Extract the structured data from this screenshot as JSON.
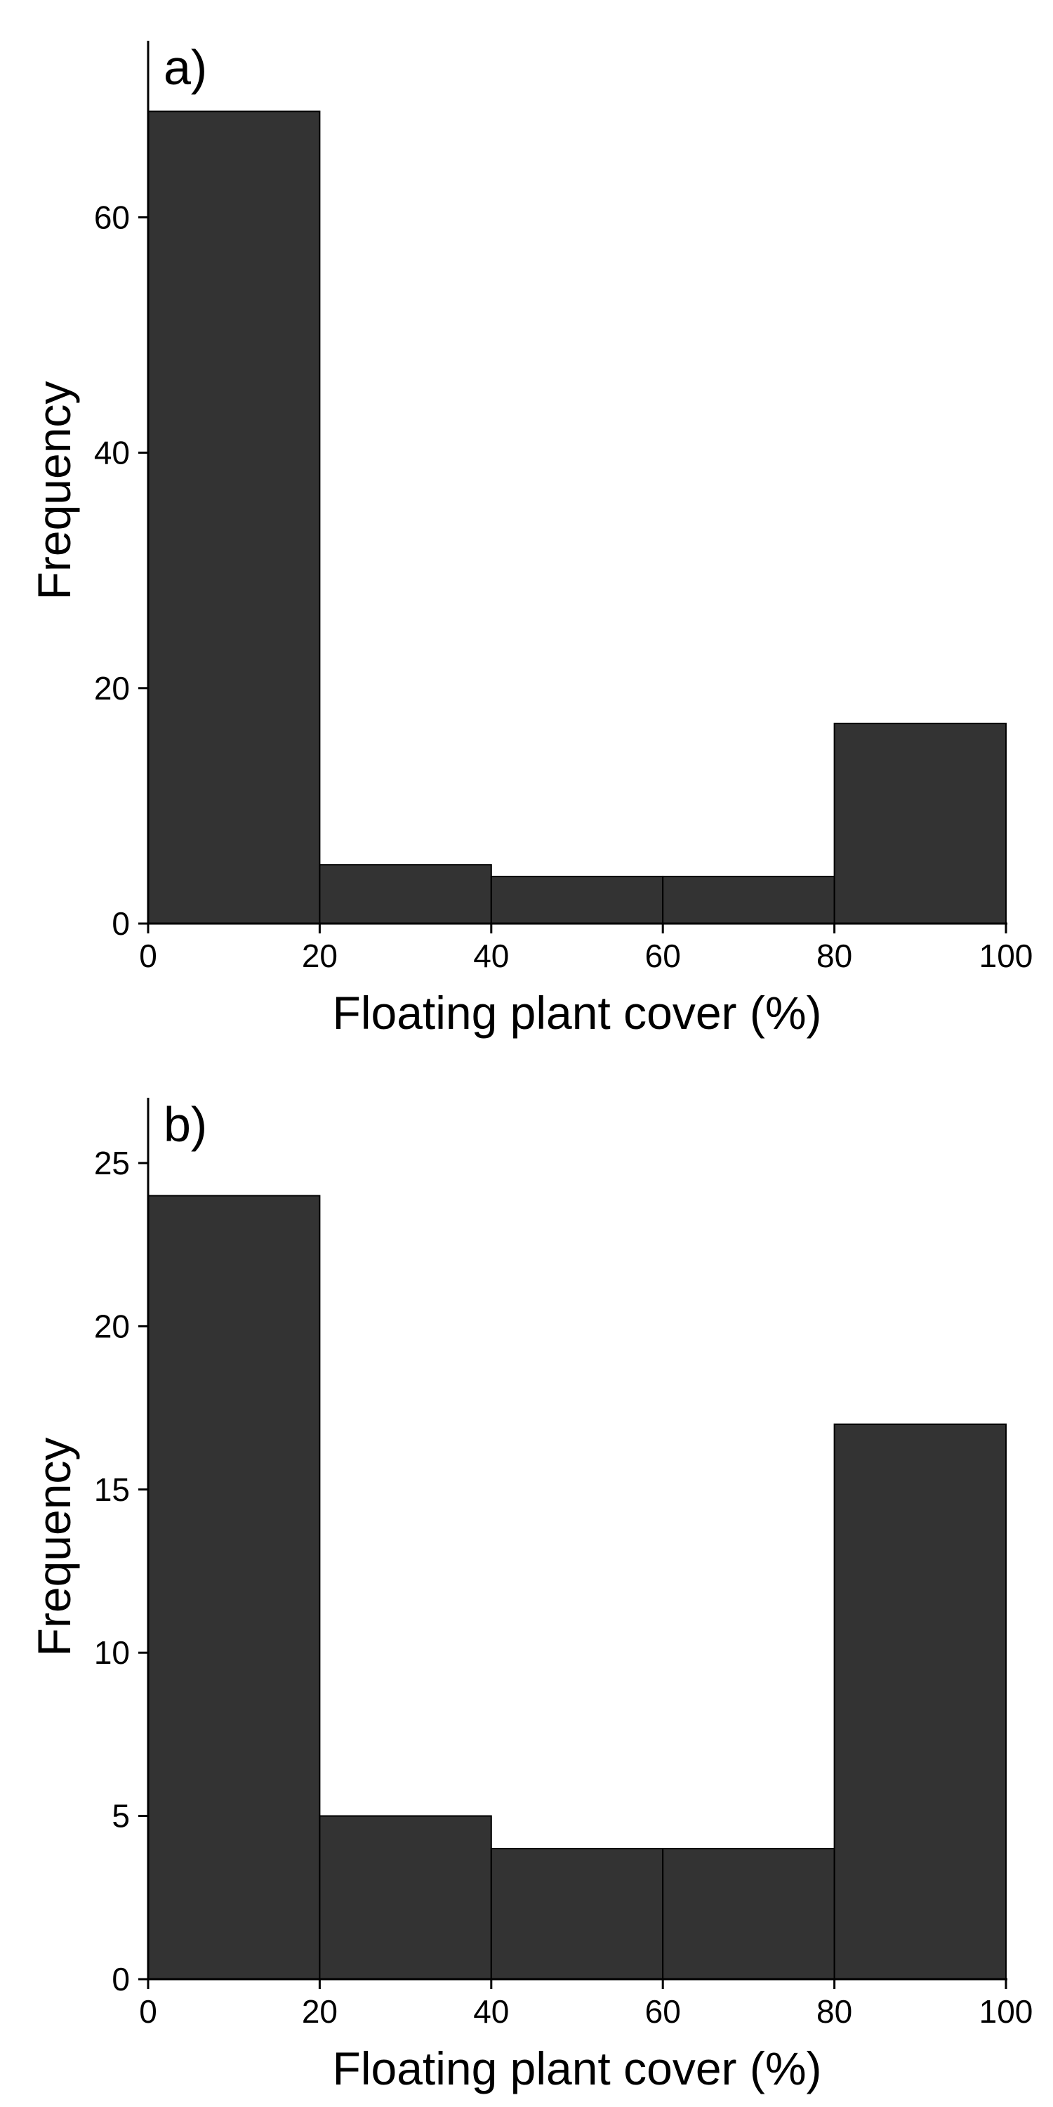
{
  "colors": {
    "bar_fill": "#333333",
    "bar_stroke": "#000000",
    "axis": "#000000"
  },
  "chart_data": [
    {
      "type": "bar",
      "panel_label": "a)",
      "xlabel": "Floating plant cover (%)",
      "ylabel": "Frequency",
      "bins": [
        [
          0,
          20
        ],
        [
          20,
          40
        ],
        [
          40,
          60
        ],
        [
          60,
          80
        ],
        [
          80,
          100
        ]
      ],
      "values": [
        69,
        5,
        4,
        4,
        17
      ],
      "xlim": [
        0,
        100
      ],
      "ylim": [
        0,
        75
      ],
      "xticks": [
        0,
        20,
        40,
        60,
        80,
        100
      ],
      "yticks": [
        0,
        20,
        40,
        60
      ],
      "grid": false
    },
    {
      "type": "bar",
      "panel_label": "b)",
      "xlabel": "Floating plant cover (%)",
      "ylabel": "Frequency",
      "bins": [
        [
          0,
          20
        ],
        [
          20,
          40
        ],
        [
          40,
          60
        ],
        [
          60,
          80
        ],
        [
          80,
          100
        ]
      ],
      "values": [
        24,
        5,
        4,
        4,
        17
      ],
      "xlim": [
        0,
        100
      ],
      "ylim": [
        0,
        27
      ],
      "xticks": [
        0,
        20,
        40,
        60,
        80,
        100
      ],
      "yticks": [
        0,
        5,
        10,
        15,
        20,
        25
      ],
      "grid": false
    }
  ]
}
